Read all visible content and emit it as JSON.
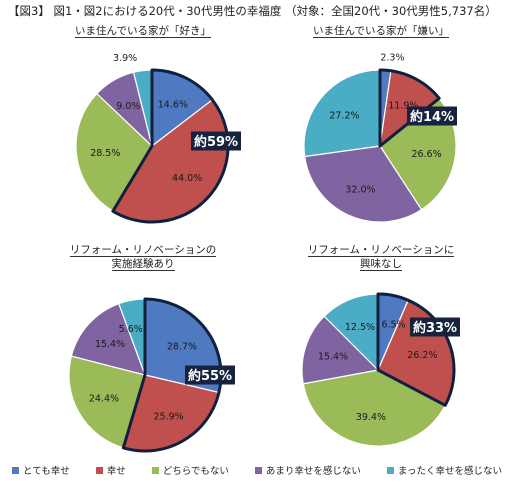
{
  "title": "【図3】 図1・図2における20代・30代男性の幸福度 （対象：全国20代・30代男性5,737名）",
  "colors": {
    "totemo": "#4f7ac1",
    "shiawase": "#c0504d",
    "dochira": "#9bbb59",
    "amari": "#8064a2",
    "mattaku": "#4bacc6",
    "highlight_outline": "#10203f",
    "callout_bg": "#17223f",
    "callout_text": "#ffffff"
  },
  "chart_data": [
    {
      "type": "pie",
      "title_lines": [
        "いま住んでいる家が「好き」"
      ],
      "categories": [
        "とても幸せ",
        "幸せ",
        "どちらでもない",
        "あまり幸せを感じない",
        "まったく幸せを感じない"
      ],
      "values": [
        14.6,
        44.0,
        28.5,
        9.0,
        3.9
      ],
      "labels": [
        "14.6%",
        "44.0%",
        "28.5%",
        "9.0%",
        "3.9%"
      ],
      "callout": "約59%",
      "highlighted": [
        0,
        1
      ]
    },
    {
      "type": "pie",
      "title_lines": [
        "いま住んでいる家が「嫌い」"
      ],
      "categories": [
        "とても幸せ",
        "幸せ",
        "どちらでもない",
        "あまり幸せを感じない",
        "まったく幸せを感じない"
      ],
      "values": [
        2.3,
        11.9,
        26.6,
        32.0,
        27.2
      ],
      "labels": [
        "2.3%",
        "11.9%",
        "26.6%",
        "32.0%",
        "27.2%"
      ],
      "callout": "約14%",
      "highlighted": [
        0,
        1
      ]
    },
    {
      "type": "pie",
      "title_lines": [
        "リフォーム・リノベーションの",
        "実施経験あり"
      ],
      "categories": [
        "とても幸せ",
        "幸せ",
        "どちらでもない",
        "あまり幸せを感じない",
        "まったく幸せを感じない"
      ],
      "values": [
        28.7,
        25.9,
        24.4,
        15.4,
        5.6
      ],
      "labels": [
        "28.7%",
        "25.9%",
        "24.4%",
        "15.4%",
        "5.6%"
      ],
      "callout": "約55%",
      "highlighted": [
        0,
        1
      ]
    },
    {
      "type": "pie",
      "title_lines": [
        "リフォーム・リノベーションに",
        "興味なし"
      ],
      "categories": [
        "とても幸せ",
        "幸せ",
        "どちらでもない",
        "あまり幸せを感じない",
        "まったく幸せを感じない"
      ],
      "values": [
        6.5,
        26.2,
        39.4,
        15.4,
        12.5
      ],
      "labels": [
        "6.5%",
        "26.2%",
        "39.4%",
        "15.4%",
        "12.5%"
      ],
      "callout": "約33%",
      "highlighted": [
        0,
        1
      ]
    }
  ],
  "legend": [
    {
      "label": "とても幸せ",
      "color_key": "totemo"
    },
    {
      "label": "幸せ",
      "color_key": "shiawase"
    },
    {
      "label": "どちらでもない",
      "color_key": "dochira"
    },
    {
      "label": "あまり幸せを感じない",
      "color_key": "amari"
    },
    {
      "label": "まったく幸せを感じない",
      "color_key": "mattaku"
    }
  ]
}
